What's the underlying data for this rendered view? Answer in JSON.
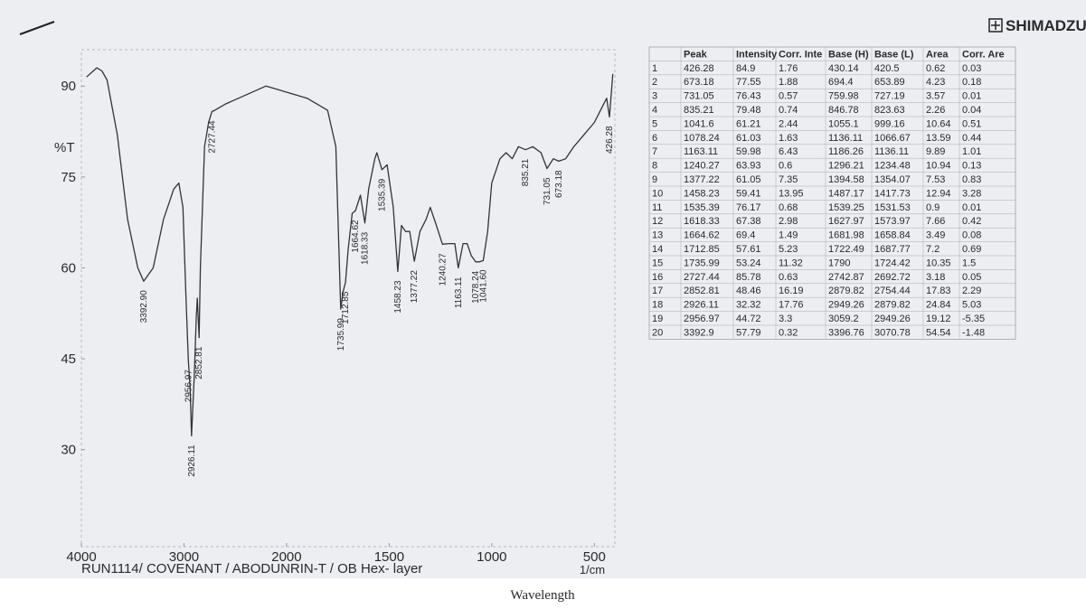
{
  "brand": "SHIMADZU",
  "chart_data": {
    "type": "line",
    "ylabel": "%T",
    "xlabel": "Wavelength",
    "xunit": "1/cm",
    "footer": "RUN1114/ COVENANT / ABODUNRIN-T /  OB Hex- layer",
    "xlim": [
      4000,
      400
    ],
    "xticks": [
      4000,
      3000,
      2000,
      1500,
      1000,
      500
    ],
    "ylim": [
      14,
      96
    ],
    "yticks": [
      30,
      45,
      60,
      75,
      90
    ],
    "grid": false,
    "x": [
      3950,
      3850,
      3800,
      3750,
      3650,
      3550,
      3450,
      3392.9,
      3300,
      3200,
      3100,
      3050,
      3010,
      2980,
      2956.97,
      2940,
      2926.11,
      2900,
      2880,
      2870,
      2852.81,
      2840,
      2800,
      2760,
      2727.44,
      2700,
      2600,
      2400,
      2200,
      2100,
      2000,
      1900,
      1800,
      1760,
      1735.99,
      1725,
      1712.85,
      1700,
      1680,
      1664.62,
      1640,
      1618.33,
      1600,
      1570,
      1560,
      1535.39,
      1510,
      1480,
      1458.23,
      1440,
      1420,
      1400,
      1377.22,
      1350,
      1320,
      1300,
      1270,
      1240.27,
      1210,
      1180,
      1163.11,
      1140,
      1120,
      1100,
      1078.24,
      1060,
      1041.6,
      1020,
      1000,
      960,
      930,
      900,
      870,
      835.21,
      800,
      760,
      731.05,
      700,
      673.18,
      640,
      600,
      550,
      500,
      470,
      440,
      426.28,
      410
    ],
    "series": [
      {
        "color": "#333333",
        "values": [
          91.5,
          93,
          92.5,
          91,
          82,
          68,
          60,
          57.8,
          60,
          68,
          73,
          74,
          70,
          55,
          44.7,
          40,
          32.3,
          42,
          52,
          55,
          48.5,
          60,
          80,
          84,
          85.8,
          86,
          87,
          88.5,
          90,
          89.5,
          89,
          88,
          86,
          80,
          53.2,
          56,
          57.6,
          63,
          69,
          69.4,
          72,
          67.4,
          73,
          78,
          79,
          76.2,
          77,
          70,
          59.4,
          67,
          66,
          66,
          61.1,
          66,
          68,
          70,
          67,
          63.9,
          64,
          64,
          60,
          64,
          64,
          62,
          61,
          61,
          61.2,
          66,
          74,
          78,
          79,
          78,
          80,
          79.5,
          80,
          79,
          76.4,
          78,
          77.6,
          78,
          80,
          82,
          84,
          86,
          88,
          84.9,
          92
        ]
      }
    ],
    "annotations": [
      {
        "text": "3392.90",
        "x": 3392.9
      },
      {
        "text": "2956.97",
        "x": 2956.97
      },
      {
        "text": "2926.11",
        "x": 2926.11
      },
      {
        "text": "2852.81",
        "x": 2852.81
      },
      {
        "text": "2727.44",
        "x": 2727.44
      },
      {
        "text": "1735.99",
        "x": 1735.99
      },
      {
        "text": "1712.85",
        "x": 1712.85
      },
      {
        "text": "1664.62",
        "x": 1664.62
      },
      {
        "text": "1618.33",
        "x": 1618.33
      },
      {
        "text": "1535.39",
        "x": 1535.39
      },
      {
        "text": "1458.23",
        "x": 1458.23
      },
      {
        "text": "1377.22",
        "x": 1377.22
      },
      {
        "text": "1240.27",
        "x": 1240.27
      },
      {
        "text": "1163.11",
        "x": 1163.11
      },
      {
        "text": "1078.24",
        "x": 1078.24
      },
      {
        "text": "1041.60",
        "x": 1041.6
      },
      {
        "text": "835.21",
        "x": 835.21
      },
      {
        "text": "731.05",
        "x": 731.05
      },
      {
        "text": "673.18",
        "x": 673.18
      },
      {
        "text": "426.28",
        "x": 426.28
      }
    ]
  },
  "table": {
    "columns": [
      "",
      "Peak",
      "Intensity",
      "Corr. Inte",
      "Base (H)",
      "Base (L)",
      "Area",
      "Corr. Are"
    ],
    "rows": [
      [
        "1",
        "426.28",
        "84.9",
        "1.76",
        "430.14",
        "420.5",
        "0.62",
        "0.03"
      ],
      [
        "2",
        "673.18",
        "77.55",
        "1.88",
        "694.4",
        "653.89",
        "4.23",
        "0.18"
      ],
      [
        "3",
        "731.05",
        "76.43",
        "0.57",
        "759.98",
        "727.19",
        "3.57",
        "0.01"
      ],
      [
        "4",
        "835.21",
        "79.48",
        "0.74",
        "846.78",
        "823.63",
        "2.26",
        "0.04"
      ],
      [
        "5",
        "1041.6",
        "61.21",
        "2.44",
        "1055.1",
        "999.16",
        "10.64",
        "0.51"
      ],
      [
        "6",
        "1078.24",
        "61.03",
        "1.63",
        "1136.11",
        "1066.67",
        "13.59",
        "0.44"
      ],
      [
        "7",
        "1163.11",
        "59.98",
        "6.43",
        "1186.26",
        "1136.11",
        "9.89",
        "1.01"
      ],
      [
        "8",
        "1240.27",
        "63.93",
        "0.6",
        "1296.21",
        "1234.48",
        "10.94",
        "0.13"
      ],
      [
        "9",
        "1377.22",
        "61.05",
        "7.35",
        "1394.58",
        "1354.07",
        "7.53",
        "0.83"
      ],
      [
        "10",
        "1458.23",
        "59.41",
        "13.95",
        "1487.17",
        "1417.73",
        "12.94",
        "3.28"
      ],
      [
        "11",
        "1535.39",
        "76.17",
        "0.68",
        "1539.25",
        "1531.53",
        "0.9",
        "0.01"
      ],
      [
        "12",
        "1618.33",
        "67.38",
        "2.98",
        "1627.97",
        "1573.97",
        "7.66",
        "0.42"
      ],
      [
        "13",
        "1664.62",
        "69.4",
        "1.49",
        "1681.98",
        "1658.84",
        "3.49",
        "0.08"
      ],
      [
        "14",
        "1712.85",
        "57.61",
        "5.23",
        "1722.49",
        "1687.77",
        "7.2",
        "0.69"
      ],
      [
        "15",
        "1735.99",
        "53.24",
        "11.32",
        "1790",
        "1724.42",
        "10.35",
        "1.5"
      ],
      [
        "16",
        "2727.44",
        "85.78",
        "0.63",
        "2742.87",
        "2692.72",
        "3.18",
        "0.05"
      ],
      [
        "17",
        "2852.81",
        "48.46",
        "16.19",
        "2879.82",
        "2754.44",
        "17.83",
        "2.29"
      ],
      [
        "18",
        "2926.11",
        "32.32",
        "17.76",
        "2949.26",
        "2879.82",
        "24.84",
        "5.03"
      ],
      [
        "19",
        "2956.97",
        "44.72",
        "3.3",
        "3059.2",
        "2949.26",
        "19.12",
        "-5.35"
      ],
      [
        "20",
        "3392.9",
        "57.79",
        "0.32",
        "3396.76",
        "3070.78",
        "54.54",
        "-1.48"
      ]
    ]
  }
}
